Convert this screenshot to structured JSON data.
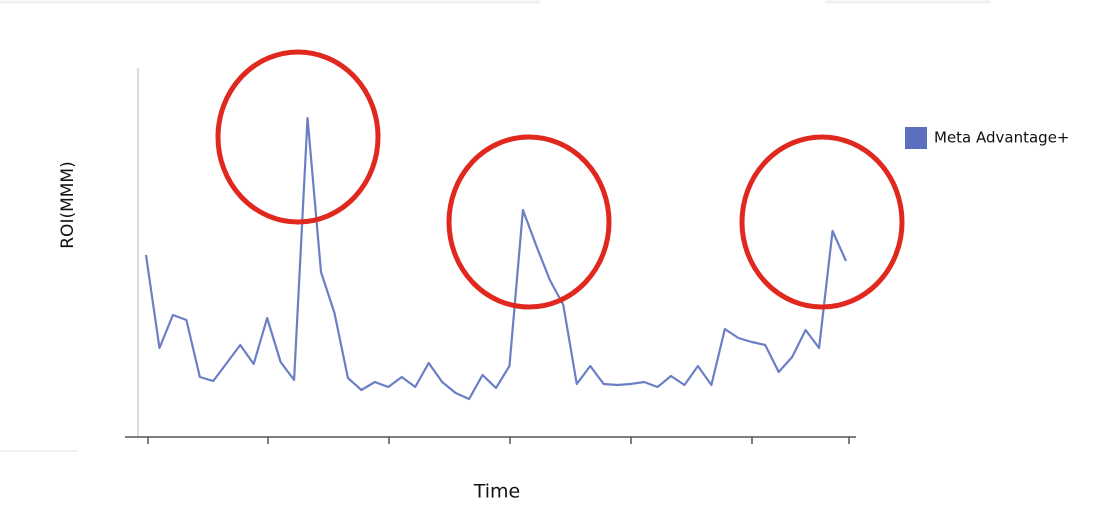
{
  "chart_data": {
    "type": "line",
    "y_label": "ROI(MMM)",
    "x_label": "Time",
    "ylim": [
      0,
      370
    ],
    "series": [
      {
        "name": "Meta Advantage+",
        "color": "#6a7fc4",
        "values": [
          182,
          89,
          122,
          117,
          60,
          56,
          74,
          92,
          73,
          119,
          75,
          57,
          319,
          165,
          124,
          59,
          47,
          55,
          50,
          60,
          50,
          74,
          55,
          44,
          38,
          62,
          49,
          71,
          227,
          191,
          157,
          132,
          53,
          71,
          53,
          52,
          53,
          55,
          50,
          61,
          52,
          71,
          52,
          108,
          99,
          95,
          92,
          65,
          80,
          107,
          89,
          206,
          176
        ]
      }
    ]
  }
}
